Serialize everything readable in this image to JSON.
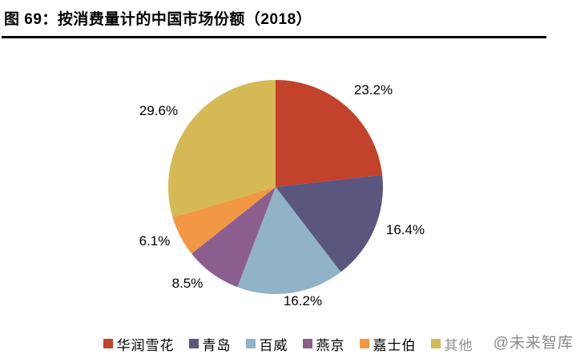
{
  "header": {
    "title": "图 69：按消费量计的中国市场份额（2018）"
  },
  "chart_data": {
    "type": "pie",
    "figure_label": "图 69",
    "title": "按消费量计的中国市场份额（2018）",
    "year": "2018",
    "unit": "%",
    "direction": "clockwise",
    "start_angle_deg": 0,
    "legend_position": "bottom",
    "categories": [
      "华润雪花",
      "青岛",
      "百威",
      "燕京",
      "嘉士伯",
      "其他"
    ],
    "values": [
      23.2,
      16.4,
      16.2,
      8.5,
      6.1,
      29.6
    ],
    "labels": [
      "23.2%",
      "16.4%",
      "16.2%",
      "8.5%",
      "6.1%",
      "29.6%"
    ],
    "colors": [
      "#C2422C",
      "#5A567E",
      "#91B3C7",
      "#8B5E8D",
      "#F29743",
      "#D5B955"
    ]
  },
  "watermark": {
    "text": "@未来智库"
  }
}
